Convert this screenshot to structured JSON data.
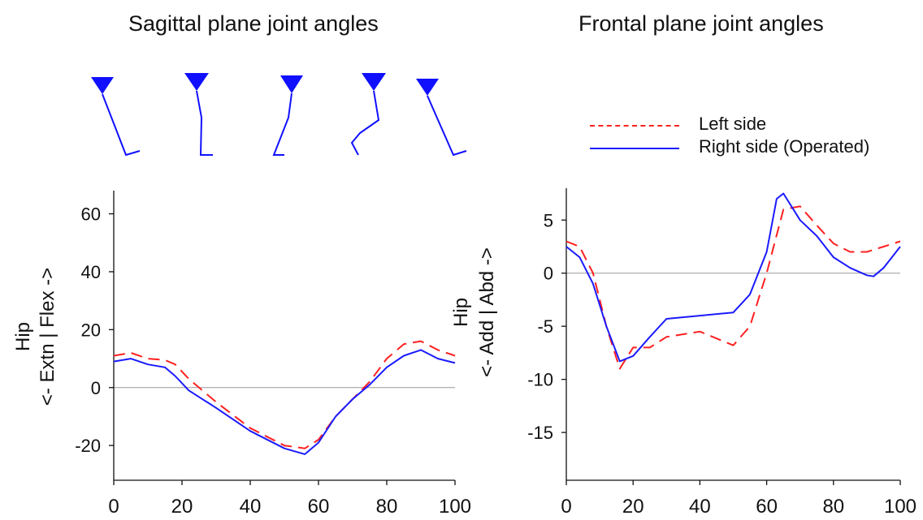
{
  "colors": {
    "left": "#ff2020",
    "right": "#1a1aff",
    "zero": "#999999",
    "axis": "#111111",
    "stick": "#1010ff"
  },
  "legend": [
    {
      "label": "Left side",
      "style": "dashed",
      "color": "#ff2020"
    },
    {
      "label": "Right side (Operated)",
      "style": "solid",
      "color": "#1a1aff"
    }
  ],
  "stick_figures": {
    "panel": "sagittal",
    "count": 5,
    "icon": "leg-stick-figure-icon"
  },
  "chart_data": [
    {
      "type": "line",
      "title": "Sagittal plane joint angles",
      "ylabel_line1": "Hip",
      "ylabel_line2": "<- Extn  |  Flex ->",
      "xlabel": "",
      "xlim": [
        0,
        100
      ],
      "ylim": [
        -32,
        68
      ],
      "xticks": [
        0,
        20,
        40,
        60,
        80,
        100
      ],
      "yticks": [
        -20,
        0,
        20,
        40,
        60
      ],
      "grid": false,
      "zero_line": true,
      "series": [
        {
          "name": "Left side",
          "style": "dashed",
          "x": [
            0,
            5,
            10,
            15,
            18,
            22,
            30,
            40,
            50,
            56,
            60,
            65,
            70,
            75,
            80,
            85,
            90,
            95,
            100
          ],
          "y": [
            11,
            12,
            10,
            9.5,
            8,
            3,
            -5,
            -14,
            -20,
            -21,
            -18,
            -10,
            -4,
            2,
            10,
            15,
            16,
            13,
            11
          ]
        },
        {
          "name": "Right side (Operated)",
          "style": "solid",
          "x": [
            0,
            5,
            10,
            15,
            18,
            22,
            30,
            40,
            50,
            56,
            60,
            65,
            70,
            75,
            80,
            85,
            90,
            95,
            100
          ],
          "y": [
            9,
            10,
            8,
            7,
            4,
            -1,
            -7,
            -15,
            -21,
            -23,
            -19,
            -10,
            -4,
            1,
            7,
            11,
            13,
            10,
            8.5
          ]
        }
      ]
    },
    {
      "type": "line",
      "title": "Frontal plane joint angles",
      "ylabel_line1": "Hip",
      "ylabel_line2": "<- Add  |  Abd ->",
      "xlabel": "",
      "xlim": [
        0,
        100
      ],
      "ylim": [
        -19.5,
        8
      ],
      "xticks": [
        0,
        20,
        40,
        60,
        80,
        100
      ],
      "yticks": [
        -15,
        -10,
        -5,
        0,
        5
      ],
      "grid": false,
      "zero_line": true,
      "series": [
        {
          "name": "Left side",
          "style": "dashed",
          "x": [
            0,
            4,
            8,
            12,
            16,
            20,
            25,
            30,
            40,
            50,
            55,
            60,
            65,
            70,
            75,
            80,
            85,
            90,
            95,
            100
          ],
          "y": [
            3,
            2.5,
            0,
            -5,
            -9,
            -7,
            -7,
            -6,
            -5.5,
            -6.8,
            -5,
            0,
            6,
            6.3,
            4.5,
            2.8,
            2,
            2,
            2.5,
            3
          ]
        },
        {
          "name": "Right side (Operated)",
          "style": "solid",
          "x": [
            0,
            4,
            8,
            12,
            16,
            20,
            25,
            30,
            40,
            50,
            55,
            60,
            63,
            65,
            70,
            75,
            80,
            85,
            90,
            92,
            95,
            100
          ],
          "y": [
            2.5,
            1.5,
            -1,
            -5,
            -8.3,
            -7.8,
            -6,
            -4.3,
            -4,
            -3.7,
            -2,
            2,
            7,
            7.5,
            5,
            3.5,
            1.5,
            0.5,
            -0.2,
            -0.3,
            0.5,
            2.5
          ]
        }
      ]
    }
  ]
}
